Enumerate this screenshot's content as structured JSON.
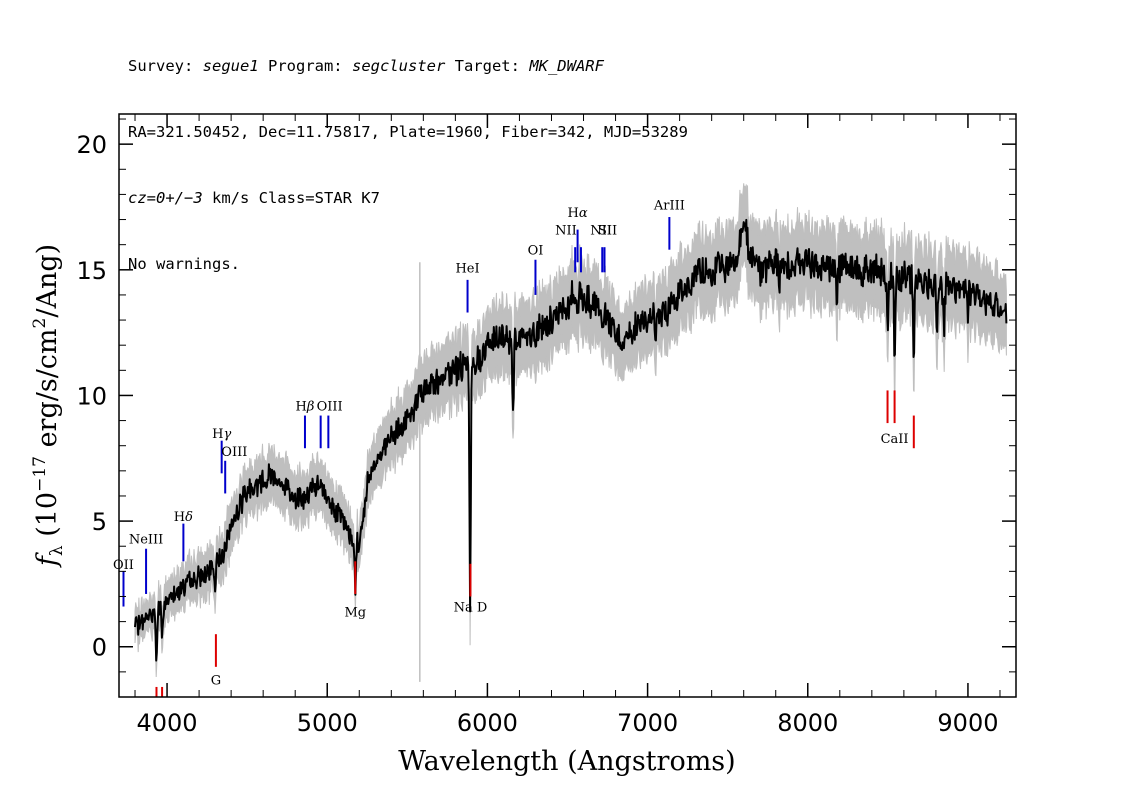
{
  "header": {
    "line1": {
      "survey_label": "Survey: ",
      "survey": "segue1",
      "program_label": " Program: ",
      "program": "segcluster",
      "target_label": " Target: ",
      "target": "MK_DWARF"
    },
    "line2": "RA=321.50452, Dec=11.75817, Plate=1960, Fiber=342, MJD=53289",
    "line3": {
      "cz": "cz=0+/−3",
      "rest": " km/s Class=STAR K7"
    },
    "line4": "No warnings."
  },
  "chart_data": {
    "type": "line",
    "xlabel": "Wavelength (Angstroms)",
    "ylabel": {
      "base": "f",
      "sub": "λ",
      "pre": " (10",
      "exp1": "−17",
      "mid": " erg/s/cm",
      "exp2": "2",
      "post": "/Ang)"
    },
    "xlim": [
      3700,
      9300
    ],
    "ylim": [
      -2,
      21.2
    ],
    "xticks": [
      4000,
      5000,
      6000,
      7000,
      8000,
      9000
    ],
    "yticks": [
      0,
      5,
      10,
      15,
      20
    ],
    "colors": {
      "flux": "#000000",
      "error": "#bfbfbf",
      "emission": "#0000cc",
      "absorption": "#dd0000"
    },
    "continuum_points": [
      [
        3800,
        0.8
      ],
      [
        3850,
        1.0
      ],
      [
        3900,
        1.3
      ],
      [
        3950,
        1.5
      ],
      [
        4000,
        1.8
      ],
      [
        4050,
        2.2
      ],
      [
        4100,
        2.4
      ],
      [
        4150,
        2.6
      ],
      [
        4200,
        2.8
      ],
      [
        4250,
        2.9
      ],
      [
        4300,
        3.2
      ],
      [
        4350,
        3.8
      ],
      [
        4400,
        4.8
      ],
      [
        4450,
        5.6
      ],
      [
        4500,
        6.2
      ],
      [
        4600,
        6.6
      ],
      [
        4650,
        6.9
      ],
      [
        4700,
        6.6
      ],
      [
        4800,
        6.0
      ],
      [
        4850,
        5.8
      ],
      [
        4900,
        6.3
      ],
      [
        4950,
        6.4
      ],
      [
        5000,
        5.9
      ],
      [
        5050,
        5.5
      ],
      [
        5100,
        5.0
      ],
      [
        5150,
        4.3
      ],
      [
        5200,
        4.0
      ],
      [
        5250,
        6.5
      ],
      [
        5300,
        7.5
      ],
      [
        5400,
        8.2
      ],
      [
        5500,
        9.0
      ],
      [
        5550,
        9.6
      ],
      [
        5600,
        10.2
      ],
      [
        5700,
        10.7
      ],
      [
        5800,
        11.0
      ],
      [
        5850,
        11.2
      ],
      [
        5900,
        11.0
      ],
      [
        5950,
        11.5
      ],
      [
        6000,
        12.0
      ],
      [
        6100,
        12.3
      ],
      [
        6200,
        12.2
      ],
      [
        6300,
        12.6
      ],
      [
        6400,
        13.0
      ],
      [
        6500,
        13.6
      ],
      [
        6550,
        14.1
      ],
      [
        6600,
        13.9
      ],
      [
        6700,
        13.3
      ],
      [
        6800,
        12.5
      ],
      [
        6850,
        12.1
      ],
      [
        6900,
        12.5
      ],
      [
        7000,
        13.1
      ],
      [
        7100,
        13.2
      ],
      [
        7200,
        14.0
      ],
      [
        7300,
        14.8
      ],
      [
        7400,
        15.0
      ],
      [
        7500,
        15.1
      ],
      [
        7550,
        15.3
      ],
      [
        7600,
        16.7
      ],
      [
        7650,
        15.6
      ],
      [
        7700,
        15.0
      ],
      [
        7800,
        15.2
      ],
      [
        8000,
        15.3
      ],
      [
        8200,
        15.1
      ],
      [
        8400,
        15.0
      ],
      [
        8600,
        14.7
      ],
      [
        8800,
        14.4
      ],
      [
        9000,
        14.2
      ],
      [
        9200,
        13.5
      ],
      [
        9240,
        13.3
      ]
    ],
    "absorption_dips": [
      [
        3934,
        2.0
      ],
      [
        3969,
        1.5
      ],
      [
        4300,
        0.8
      ],
      [
        5175,
        1.8
      ],
      [
        5892,
        9.2
      ],
      [
        6160,
        2.8
      ],
      [
        6300,
        0.6
      ],
      [
        6563,
        1.0
      ],
      [
        7050,
        1.0
      ],
      [
        7400,
        1.2
      ],
      [
        7820,
        1.0
      ],
      [
        8183,
        1.2
      ],
      [
        8498,
        2.5
      ],
      [
        8542,
        3.0
      ],
      [
        8662,
        3.5
      ],
      [
        8806,
        2.0
      ],
      [
        8850,
        1.8
      ],
      [
        9000,
        1.5
      ]
    ],
    "spikes": [
      [
        5578,
        -1.4,
        15.3
      ]
    ],
    "emission_lines": [
      {
        "label": "OII",
        "x": 3728,
        "y1": 1.6,
        "y2": 3.0,
        "lx": 3728,
        "ly": 3.1
      },
      {
        "label": "NeIII",
        "x": 3869,
        "y1": 2.1,
        "y2": 3.9,
        "lx": 3869,
        "ly": 4.1
      },
      {
        "label": "H",
        "greek": "δ",
        "x": 4102,
        "y1": 3.4,
        "y2": 4.9,
        "lx": 4102,
        "ly": 5.0
      },
      {
        "label": "H",
        "greek": "γ",
        "x": 4341,
        "y1": 6.9,
        "y2": 8.2,
        "lx": 4341,
        "ly": 8.3
      },
      {
        "label": "OIII",
        "x": 4363,
        "y1": 6.1,
        "y2": 7.4,
        "lx": 4420,
        "ly": 7.6
      },
      {
        "label": "H",
        "greek": "β",
        "x": 4861,
        "y1": 7.9,
        "y2": 9.2,
        "lx": 4861,
        "ly": 9.4
      },
      {
        "label": "OIII",
        "x": 4959,
        "y1": 7.9,
        "y2": 9.2,
        "lx": 5015,
        "ly": 9.4
      },
      {
        "label": "",
        "x": 5007,
        "y1": 7.9,
        "y2": 9.2
      },
      {
        "label": "HeI",
        "x": 5876,
        "y1": 13.3,
        "y2": 14.6,
        "lx": 5876,
        "ly": 14.9
      },
      {
        "label": "OI",
        "x": 6300,
        "y1": 14.0,
        "y2": 15.4,
        "lx": 6300,
        "ly": 15.6
      },
      {
        "label": "NII",
        "x": 6548,
        "y1": 14.9,
        "y2": 15.9,
        "lx": 6490,
        "ly": 16.4
      },
      {
        "label": "H",
        "greek": "α",
        "x": 6563,
        "y1": 15.3,
        "y2": 16.6,
        "lx": 6563,
        "ly": 17.1
      },
      {
        "label": "",
        "x": 6584,
        "y1": 14.9,
        "y2": 15.9
      },
      {
        "label": "NII",
        "x": 6717,
        "y1": 14.9,
        "y2": 15.9,
        "lx": 6710,
        "ly": 16.4
      },
      {
        "label": "SII",
        "x": 6731,
        "y1": 14.9,
        "y2": 15.9,
        "lx": 6750,
        "ly": 16.4
      },
      {
        "label": "ArIII",
        "x": 7136,
        "y1": 15.8,
        "y2": 17.1,
        "lx": 7136,
        "ly": 17.4
      }
    ],
    "absorption_lines": [
      {
        "label": "",
        "x": 3934,
        "y1": -2.0,
        "y2": -1.6
      },
      {
        "label": "",
        "x": 3969,
        "y1": -2.0,
        "y2": -1.6
      },
      {
        "label": "G",
        "x": 4305,
        "y1": -0.8,
        "y2": 0.5,
        "lx": 4305,
        "ly": -1.5
      },
      {
        "label": "Mg",
        "x": 5175,
        "y1": 2.1,
        "y2": 3.4,
        "lx": 5175,
        "ly": 1.2
      },
      {
        "label": "Na D",
        "x": 5894,
        "y1": 2.0,
        "y2": 3.3,
        "lx": 5894,
        "ly": 1.4
      },
      {
        "label": "",
        "x": 8498,
        "y1": 8.9,
        "y2": 10.2
      },
      {
        "label": "CaII",
        "x": 8542,
        "y1": 8.9,
        "y2": 10.2,
        "lx": 8542,
        "ly": 8.1
      },
      {
        "label": "",
        "x": 8662,
        "y1": 7.9,
        "y2": 9.2
      }
    ]
  }
}
